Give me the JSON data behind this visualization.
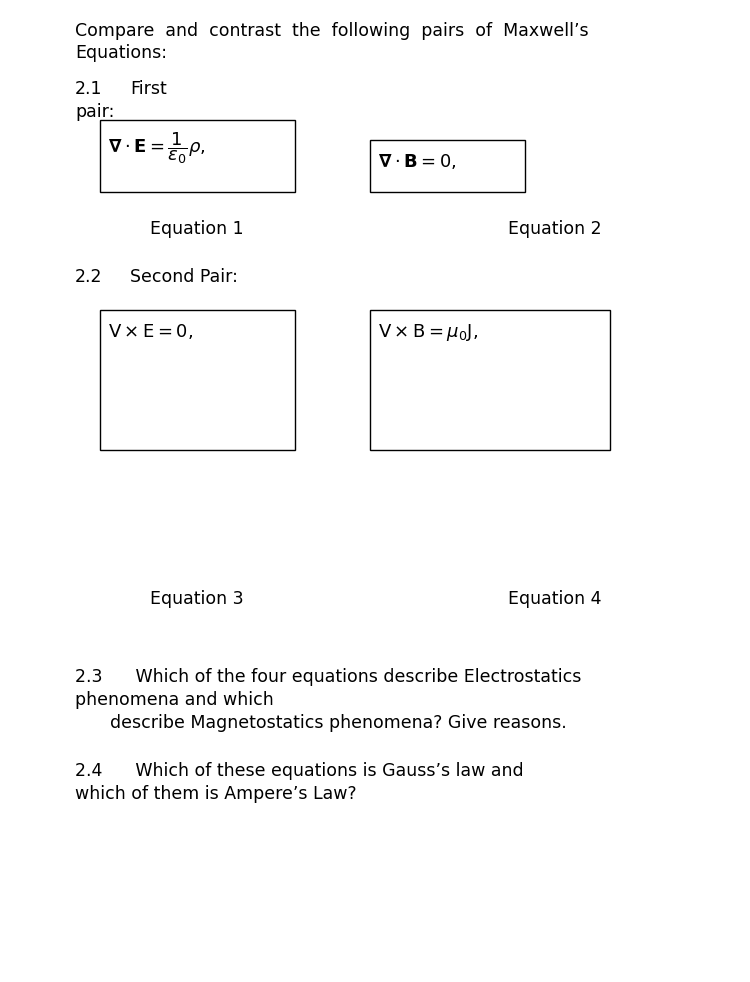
{
  "bg_color": "#ffffff",
  "eq1_latex": "$\\mathbf{\\nabla} \\cdot \\mathbf{E} = \\dfrac{1}{\\epsilon_0}\\rho,$",
  "eq2_latex": "$\\mathbf{\\nabla} \\cdot \\mathbf{B} = 0,$",
  "eq3_latex": "$\\mathrm{V} \\times \\mathrm{E} = 0,$",
  "eq4_latex": "$\\mathrm{V} \\times \\mathrm{B} = \\mu_0 \\mathrm{J},$",
  "eq1_label": "Equation 1",
  "eq2_label": "Equation 2",
  "eq3_label": "Equation 3",
  "eq4_label": "Equation 4",
  "font_size_body": 12.5,
  "font_size_eq": 13,
  "font_size_label": 12.5,
  "text_color": "#000000",
  "title_line1": "Compare  and  contrast  the  following  pairs  of  Maxwell’s",
  "title_line2": "Equations:",
  "s21_num": "2.1",
  "s21_text": "First",
  "s21_pair": "pair:",
  "s22_num": "2.2",
  "s22_text": "Second Pair:",
  "s23_line1": "2.3      Which of the four equations describe Electrostatics",
  "s23_line2": "phenomena and which",
  "s23_line3": "         describe Magnetostatics phenomena? Give reasons.",
  "s24_line1": "2.4      Which of these equations is Gauss’s law and",
  "s24_line2": "which of them is Ampere’s Law?"
}
